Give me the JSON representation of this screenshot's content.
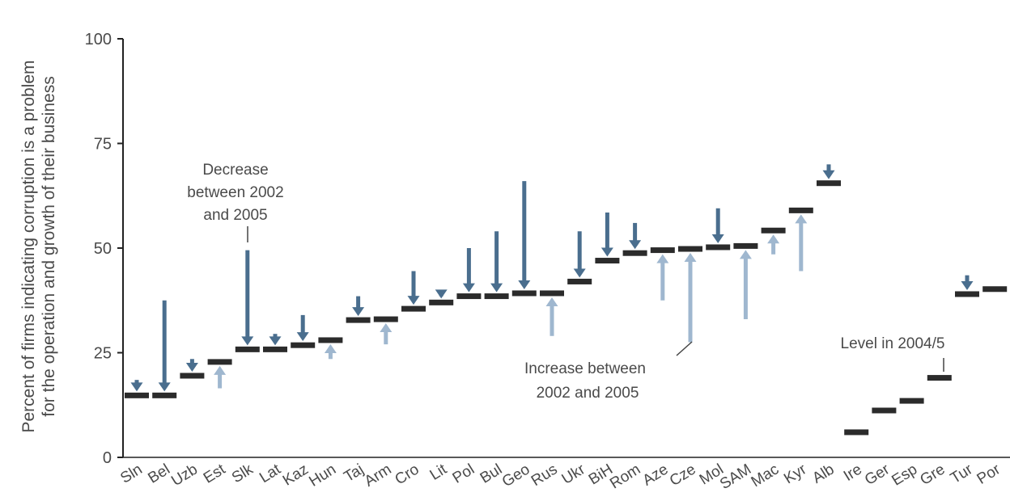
{
  "chart_data": {
    "type": "bar",
    "ylabel": [
      "Percent of firms indicating corruption is a problem",
      "for the operation and growth of their business"
    ],
    "ylim": [
      0,
      100
    ],
    "yticks": [
      "0",
      "25",
      "50",
      "75",
      "100"
    ],
    "categories": [
      "Sln",
      "Bel",
      "Uzb",
      "Est",
      "Slk",
      "Lat",
      "Kaz",
      "Hun",
      "Taj",
      "Arm",
      "Cro",
      "Lit",
      "Pol",
      "Bul",
      "Geo",
      "Rus",
      "Ukr",
      "BiH",
      "Rom",
      "Aze",
      "Cze",
      "Mol",
      "SAM",
      "Mac",
      "Kyr",
      "Alb",
      "Ire",
      "Ger",
      "Esp",
      "Gre",
      "Tur",
      "Por"
    ],
    "series": [
      {
        "name": "2002",
        "values": [
          18.5,
          37.5,
          23.5,
          16.5,
          49.5,
          29.5,
          34,
          23.5,
          38.5,
          27,
          44.5,
          38.5,
          50,
          54,
          66,
          29,
          54,
          58.5,
          56,
          37.5,
          27.5,
          59.5,
          33,
          48.5,
          44.5,
          70,
          null,
          null,
          null,
          null,
          43.5,
          null
        ]
      },
      {
        "name": "2004/5",
        "values": [
          14.8,
          14.8,
          19.5,
          22.8,
          25.8,
          25.8,
          26.8,
          28,
          32.8,
          33,
          35.5,
          37,
          38.5,
          38.5,
          39.2,
          39.2,
          42,
          47,
          48.8,
          49.5,
          49.8,
          50.2,
          50.5,
          54.2,
          59,
          65.5,
          6,
          11.2,
          13.5,
          19,
          39,
          40.2
        ]
      }
    ],
    "colors": {
      "decrease": "#4a6e8e",
      "increase": "#9fb7cf",
      "level": "#2b2b2b"
    },
    "annotations": {
      "decrease": [
        "Decrease",
        "between 2002",
        "and 2005"
      ],
      "increase": [
        "Increase between",
        "2002 and 2005"
      ],
      "level": "Level in 2004/5"
    }
  }
}
